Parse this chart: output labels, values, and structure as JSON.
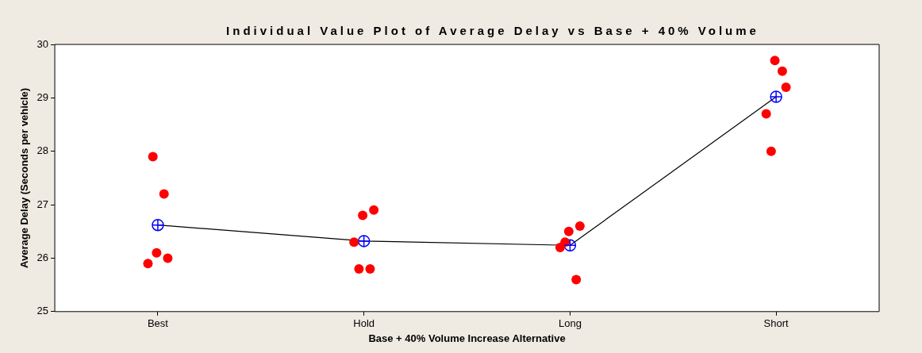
{
  "chart_data": {
    "type": "scatter",
    "title": "Individual Value Plot of Average Delay vs Base + 40% Volume",
    "xlabel": "Base + 40% Volume Increase Alternative",
    "ylabel": "Average Delay (Seconds per vehicle)",
    "categories": [
      "Best",
      "Hold",
      "Long",
      "Short"
    ],
    "series": [
      {
        "color": "#ff0000",
        "marker": "circle",
        "x": [
          "Best",
          "Best",
          "Best",
          "Best",
          "Best",
          "Hold",
          "Hold",
          "Hold",
          "Hold",
          "Hold",
          "Long",
          "Long",
          "Long",
          "Long",
          "Long",
          "Short",
          "Short",
          "Short",
          "Short",
          "Short"
        ],
        "values": [
          27.9,
          27.2,
          26.1,
          26.0,
          25.9,
          25.8,
          25.8,
          26.8,
          26.9,
          26.3,
          26.3,
          25.6,
          26.5,
          26.6,
          26.2,
          28.0,
          29.5,
          29.7,
          29.2,
          28.7
        ]
      },
      {
        "type": "line",
        "color": "#000000",
        "colors": [
          "#0000ff",
          "#0000ff",
          "#0000ff",
          "#0000ff"
        ],
        "marker": "circle",
        "values": [
          26.62,
          26.32,
          26.24,
          29.02
        ]
      }
    ],
    "ylim": [
      25,
      30
    ],
    "yticks": [
      25,
      26,
      27,
      28,
      29,
      30
    ],
    "grid": false,
    "legend": false
  }
}
